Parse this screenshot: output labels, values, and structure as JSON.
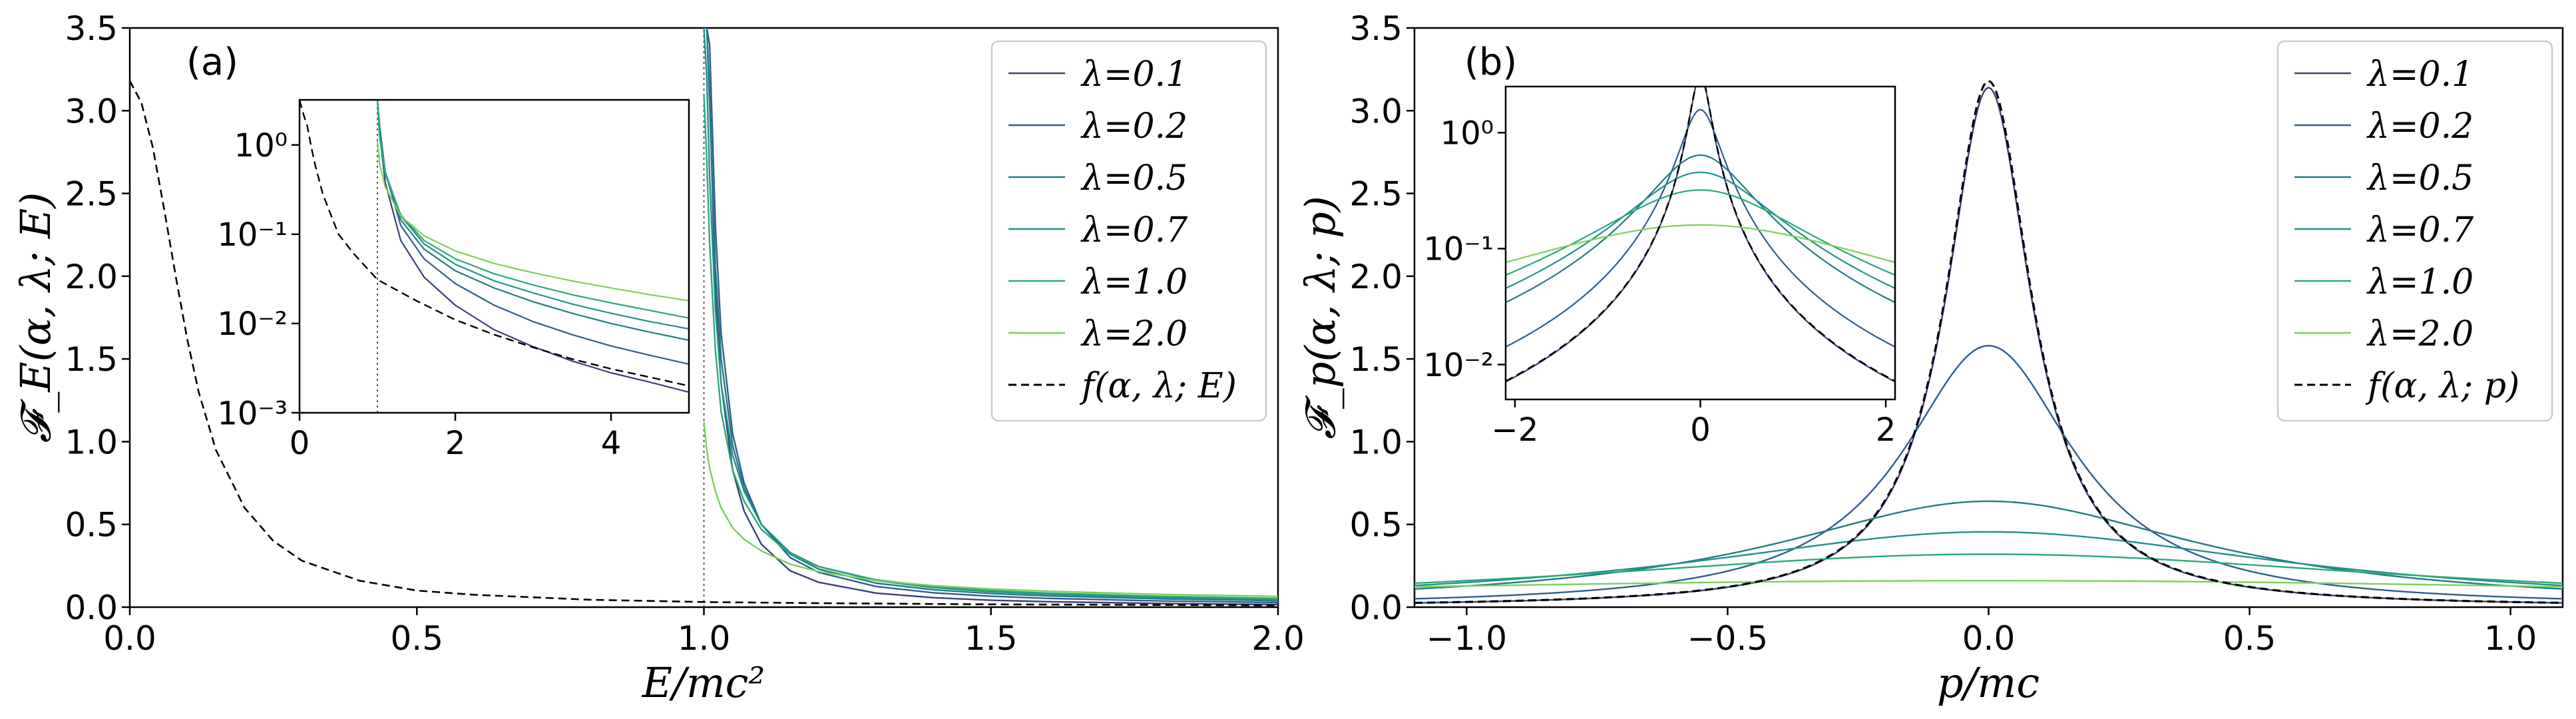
{
  "chart_data": [
    {
      "id": "a",
      "type": "line",
      "panel_label": "(a)",
      "xlabel": "E/mc²",
      "ylabel": "𝓕_E(α, λ; E)",
      "xlim": [
        0.0,
        2.0
      ],
      "ylim": [
        0.0,
        3.5
      ],
      "xticks": [
        "0.0",
        "0.5",
        "1.0",
        "1.5",
        "2.0"
      ],
      "yticks": [
        "0.0",
        "0.5",
        "1.0",
        "1.5",
        "2.0",
        "2.5",
        "3.0",
        "3.5"
      ],
      "vline_x": 1.0,
      "legend_position": "upper right",
      "series": [
        {
          "name": "λ=0.1",
          "color": "#3b3f7a",
          "style": "solid",
          "x": [
            1.0,
            1.005,
            1.01,
            1.02,
            1.03,
            1.05,
            1.07,
            1.1,
            1.15,
            1.2,
            1.3,
            1.4,
            1.5,
            1.6,
            1.8,
            2.0
          ],
          "y": [
            3.5,
            3.5,
            3.1,
            1.9,
            1.35,
            0.83,
            0.58,
            0.38,
            0.22,
            0.15,
            0.085,
            0.057,
            0.042,
            0.033,
            0.022,
            0.016
          ]
        },
        {
          "name": "λ=0.2",
          "color": "#2e5e8c",
          "style": "solid",
          "x": [
            1.0,
            1.005,
            1.01,
            1.02,
            1.03,
            1.05,
            1.07,
            1.1,
            1.15,
            1.2,
            1.3,
            1.4,
            1.5,
            1.6,
            1.8,
            2.0
          ],
          "y": [
            3.5,
            3.5,
            3.4,
            2.3,
            1.65,
            1.05,
            0.75,
            0.5,
            0.3,
            0.21,
            0.125,
            0.087,
            0.066,
            0.053,
            0.037,
            0.028
          ]
        },
        {
          "name": "λ=0.5",
          "color": "#257a82",
          "style": "solid",
          "x": [
            1.0,
            1.005,
            1.01,
            1.02,
            1.03,
            1.05,
            1.07,
            1.1,
            1.15,
            1.2,
            1.3,
            1.4,
            1.5,
            1.6,
            1.8,
            2.0
          ],
          "y": [
            3.5,
            3.5,
            3.05,
            2.05,
            1.5,
            0.98,
            0.72,
            0.5,
            0.32,
            0.23,
            0.145,
            0.105,
            0.082,
            0.068,
            0.05,
            0.039
          ]
        },
        {
          "name": "λ=0.7",
          "color": "#21918c",
          "style": "solid",
          "x": [
            1.0,
            1.005,
            1.01,
            1.02,
            1.03,
            1.05,
            1.07,
            1.1,
            1.15,
            1.2,
            1.3,
            1.4,
            1.5,
            1.6,
            1.8,
            2.0
          ],
          "y": [
            3.5,
            3.2,
            2.6,
            1.8,
            1.35,
            0.92,
            0.7,
            0.5,
            0.33,
            0.245,
            0.16,
            0.118,
            0.093,
            0.078,
            0.058,
            0.046
          ]
        },
        {
          "name": "λ=1.0",
          "color": "#2ca87a",
          "style": "solid",
          "x": [
            1.0,
            1.005,
            1.01,
            1.02,
            1.03,
            1.05,
            1.07,
            1.1,
            1.15,
            1.2,
            1.3,
            1.4,
            1.5,
            1.6,
            1.8,
            2.0
          ],
          "y": [
            3.1,
            2.7,
            2.2,
            1.55,
            1.18,
            0.83,
            0.64,
            0.47,
            0.32,
            0.245,
            0.165,
            0.125,
            0.1,
            0.085,
            0.065,
            0.053
          ]
        },
        {
          "name": "λ=2.0",
          "color": "#7ccf5a",
          "style": "solid",
          "x": [
            1.0,
            1.005,
            1.01,
            1.02,
            1.03,
            1.05,
            1.07,
            1.1,
            1.15,
            1.2,
            1.3,
            1.4,
            1.5,
            1.6,
            1.8,
            2.0
          ],
          "y": [
            1.12,
            0.95,
            0.84,
            0.7,
            0.6,
            0.48,
            0.41,
            0.34,
            0.26,
            0.215,
            0.16,
            0.13,
            0.11,
            0.096,
            0.077,
            0.065
          ]
        },
        {
          "name": "f(α, λ; E)",
          "color": "#000000",
          "style": "dashed",
          "x": [
            0.0,
            0.02,
            0.04,
            0.06,
            0.08,
            0.1,
            0.12,
            0.15,
            0.2,
            0.25,
            0.3,
            0.4,
            0.5,
            0.6,
            0.8,
            1.0,
            1.2,
            1.5,
            2.0
          ],
          "y": [
            3.18,
            3.05,
            2.78,
            2.4,
            2.0,
            1.62,
            1.3,
            0.95,
            0.6,
            0.4,
            0.28,
            0.16,
            0.1,
            0.075,
            0.045,
            0.031,
            0.024,
            0.017,
            0.011
          ]
        }
      ],
      "inset": {
        "xlim": [
          0,
          5
        ],
        "yscale": "log",
        "ylim": [
          0.001,
          3.2
        ],
        "xticks": [
          "0",
          "2",
          "4"
        ],
        "ytick_values": [
          0.001,
          0.01,
          0.1,
          1
        ],
        "yticks": [
          "10⁻³",
          "10⁻²",
          "10⁻¹",
          "10⁰"
        ],
        "vline_x": 1.0,
        "series": [
          {
            "name": "λ=0.1",
            "color": "#3b3f7a",
            "style": "solid",
            "x": [
              1.0,
              1.03,
              1.1,
              1.3,
              1.6,
              2.0,
              2.5,
              3.0,
              3.5,
              4.0,
              4.5,
              5.0
            ],
            "y": [
              3.2,
              1.3,
              0.38,
              0.085,
              0.033,
              0.016,
              0.0085,
              0.0055,
              0.0038,
              0.0028,
              0.0022,
              0.0017
            ]
          },
          {
            "name": "λ=0.2",
            "color": "#2e5e8c",
            "style": "solid",
            "x": [
              1.0,
              1.03,
              1.1,
              1.3,
              1.6,
              2.0,
              2.5,
              3.0,
              3.5,
              4.0,
              4.5,
              5.0
            ],
            "y": [
              3.2,
              1.6,
              0.5,
              0.125,
              0.053,
              0.028,
              0.016,
              0.0105,
              0.0075,
              0.0056,
              0.0044,
              0.0035
            ]
          },
          {
            "name": "λ=0.5",
            "color": "#257a82",
            "style": "solid",
            "x": [
              1.0,
              1.03,
              1.1,
              1.3,
              1.6,
              2.0,
              2.5,
              3.0,
              3.5,
              4.0,
              4.5,
              5.0
            ],
            "y": [
              3.2,
              1.5,
              0.5,
              0.145,
              0.068,
              0.039,
              0.025,
              0.0175,
              0.013,
              0.01,
              0.008,
              0.0065
            ]
          },
          {
            "name": "λ=0.7",
            "color": "#21918c",
            "style": "solid",
            "x": [
              1.0,
              1.03,
              1.1,
              1.3,
              1.6,
              2.0,
              2.5,
              3.0,
              3.5,
              4.0,
              4.5,
              5.0
            ],
            "y": [
              3.2,
              1.35,
              0.5,
              0.16,
              0.078,
              0.046,
              0.03,
              0.022,
              0.0165,
              0.013,
              0.0105,
              0.0087
            ]
          },
          {
            "name": "λ=1.0",
            "color": "#2ca87a",
            "style": "solid",
            "x": [
              1.0,
              1.03,
              1.1,
              1.3,
              1.6,
              2.0,
              2.5,
              3.0,
              3.5,
              4.0,
              4.5,
              5.0
            ],
            "y": [
              3.1,
              1.18,
              0.47,
              0.165,
              0.085,
              0.053,
              0.036,
              0.027,
              0.021,
              0.017,
              0.014,
              0.0115
            ]
          },
          {
            "name": "λ=2.0",
            "color": "#7ccf5a",
            "style": "solid",
            "x": [
              1.0,
              1.03,
              1.1,
              1.3,
              1.6,
              2.0,
              2.5,
              3.0,
              3.5,
              4.0,
              4.5,
              5.0
            ],
            "y": [
              1.12,
              0.6,
              0.34,
              0.16,
              0.096,
              0.065,
              0.047,
              0.037,
              0.03,
              0.025,
              0.021,
              0.018
            ]
          },
          {
            "name": "f(α, λ; E)",
            "color": "#000000",
            "style": "dashed",
            "x": [
              0.0,
              0.05,
              0.1,
              0.15,
              0.2,
              0.3,
              0.5,
              0.7,
              1.0,
              1.5,
              2.0,
              2.5,
              3.0,
              3.5,
              4.0,
              4.5,
              5.0
            ],
            "y": [
              3.18,
              2.2,
              1.62,
              0.95,
              0.6,
              0.28,
              0.1,
              0.06,
              0.031,
              0.018,
              0.011,
              0.0075,
              0.0054,
              0.004,
              0.0031,
              0.0025,
              0.002
            ]
          }
        ]
      }
    },
    {
      "id": "b",
      "type": "line",
      "panel_label": "(b)",
      "xlabel": "p/mc",
      "ylabel": "𝓕_p(α, λ; p)",
      "xlim": [
        -1.1,
        1.1
      ],
      "ylim": [
        0.0,
        3.5
      ],
      "xtick_values": [
        -1.0,
        -0.5,
        0.0,
        0.5,
        1.0
      ],
      "xticks": [
        "−1.0",
        "−0.5",
        "0.0",
        "0.5",
        "1.0"
      ],
      "yticks": [
        "0.0",
        "0.5",
        "1.0",
        "1.5",
        "2.0",
        "2.5",
        "3.0",
        "3.5"
      ],
      "legend_position": "upper right",
      "series": [
        {
          "name": "λ=0.1",
          "color": "#3b3f7a",
          "style": "solid",
          "peak": 3.14,
          "width": 0.1
        },
        {
          "name": "λ=0.2",
          "color": "#2e5e8c",
          "style": "solid",
          "peak": 1.58,
          "width": 0.2
        },
        {
          "name": "λ=0.5",
          "color": "#257a82",
          "style": "solid",
          "peak": 0.64,
          "width": 0.5
        },
        {
          "name": "λ=0.7",
          "color": "#21918c",
          "style": "solid",
          "peak": 0.455,
          "width": 0.7
        },
        {
          "name": "λ=1.0",
          "color": "#2ca87a",
          "style": "solid",
          "peak": 0.32,
          "width": 1.0
        },
        {
          "name": "λ=2.0",
          "color": "#7ccf5a",
          "style": "solid",
          "peak": 0.16,
          "width": 2.0
        },
        {
          "name": "f(α, λ; p)",
          "color": "#000000",
          "style": "dashed",
          "peak": 3.18,
          "width": 0.1
        }
      ],
      "inset": {
        "xlim": [
          -2.1,
          2.1
        ],
        "yscale": "log",
        "ylim": [
          0.005,
          2.5
        ],
        "xtick_values": [
          -2,
          0,
          2
        ],
        "xticks": [
          "−2",
          "0",
          "2"
        ],
        "ytick_values": [
          0.01,
          0.1,
          1
        ],
        "yticks": [
          "10⁻²",
          "10⁻¹",
          "10⁰"
        ]
      }
    }
  ]
}
